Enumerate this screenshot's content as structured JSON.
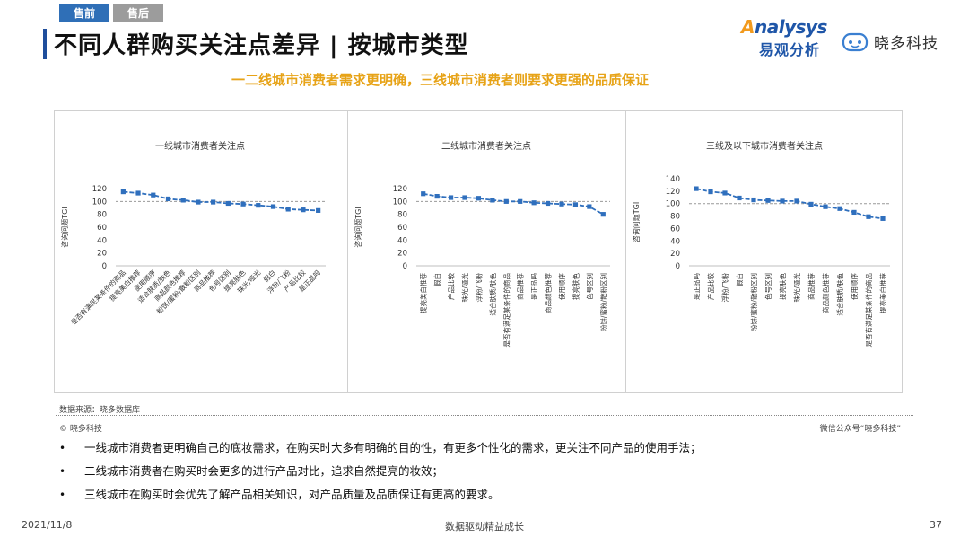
{
  "tabs": [
    {
      "label": "售前"
    },
    {
      "label": "售后"
    }
  ],
  "title": "不同人群购买关注点差异 | 按城市类型",
  "subtitle": "一二线城市消费者需求更明确，三线城市消费者则要求更强的品质保证",
  "logo_brand": {
    "prefix": "A",
    "rest": "nalysys",
    "cn": "易观分析"
  },
  "logo_partner": "晓多科技",
  "colors": {
    "series": "#2f6fbd",
    "reference": "#999999",
    "accent": "#1f4e9c",
    "highlight": "#e7a317"
  },
  "chart_data": [
    {
      "type": "line",
      "title": "一线城市消费者关注点",
      "ylabel": "咨询问题TGI",
      "ylim": [
        0,
        120
      ],
      "yticks": [
        0,
        20,
        40,
        60,
        80,
        100,
        120
      ],
      "reference_line": 100,
      "categories": [
        "是否有满足某条件的商品",
        "提亮美白推荐",
        "使用顺序",
        "适合肤质/肤色",
        "商品颜色推荐",
        "粉饼/蜜粉/散粉区别",
        "商品推荐",
        "色号区别",
        "提亮肤色",
        "珠光/哑光",
        "假白",
        "浮粉/飞粉",
        "产品比较",
        "是正品吗"
      ],
      "values": [
        115,
        113,
        110,
        104,
        102,
        99,
        99,
        97,
        96,
        94,
        92,
        88,
        87,
        86
      ]
    },
    {
      "type": "line",
      "title": "二线城市消费者关注点",
      "ylabel": "咨询问题TGI",
      "ylim": [
        0,
        120
      ],
      "yticks": [
        0,
        20,
        40,
        60,
        80,
        100,
        120
      ],
      "reference_line": 100,
      "categories": [
        "提亮美白推荐",
        "假白",
        "产品比较",
        "珠光/哑光",
        "浮粉/飞粉",
        "适合肤质/肤色",
        "是否有满足某条件的商品",
        "商品推荐",
        "是正品吗",
        "商品颜色推荐",
        "使用顺序",
        "提亮肤色",
        "色号区别",
        "粉饼/蜜粉/散粉区别"
      ],
      "values": [
        112,
        108,
        106,
        106,
        105,
        102,
        100,
        100,
        98,
        97,
        96,
        95,
        92,
        80
      ]
    },
    {
      "type": "line",
      "title": "三线及以下城市消费者关注点",
      "ylabel": "咨询问题TGI",
      "ylim": [
        0,
        140
      ],
      "yticks": [
        0,
        20,
        40,
        60,
        80,
        100,
        120,
        140
      ],
      "reference_line": 100,
      "categories": [
        "是正品吗",
        "产品比较",
        "浮粉/飞粉",
        "假白",
        "粉饼/蜜粉/散粉区别",
        "色号区别",
        "提亮肤色",
        "珠光/哑光",
        "商品推荐",
        "商品颜色推荐",
        "适合肤质/肤色",
        "使用顺序",
        "是否有满足某条件的商品",
        "提亮美白推荐"
      ],
      "values": [
        124,
        119,
        117,
        109,
        106,
        105,
        104,
        104,
        99,
        95,
        92,
        86,
        79,
        76
      ]
    }
  ],
  "source": "数据来源：晓多数据库",
  "copyright": "© 晓多科技",
  "wechat": "微信公众号“晓多科技”",
  "bullets": [
    "一线城市消费者更明确自己的底妆需求，在购买时大多有明确的目的性，有更多个性化的需求，更关注不同产品的使用手法；",
    "二线城市消费者在购买时会更多的进行产品对比，追求自然提亮的妆效；",
    "三线城市在购买时会优先了解产品相关知识，对产品质量及品质保证有更高的要求。"
  ],
  "footer": {
    "date": "2021/11/8",
    "slogan": "数据驱动精益成长",
    "page": "37"
  }
}
